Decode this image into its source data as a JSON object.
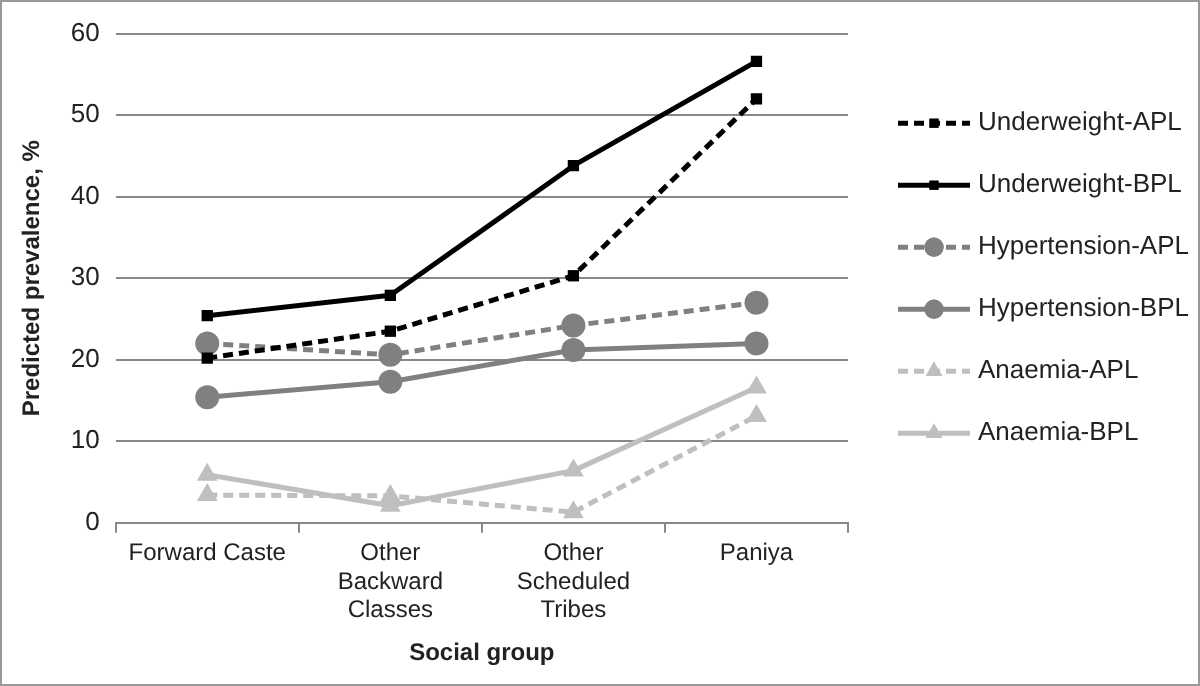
{
  "chart_data": {
    "type": "line",
    "xlabel": "Social group",
    "ylabel": "Predicted prevalence, %",
    "categories": [
      "Forward Caste",
      "Other Backward Classes",
      "Other Scheduled Tribes",
      "Paniya"
    ],
    "ylim": [
      0,
      60
    ],
    "yticks": [
      0,
      10,
      20,
      30,
      40,
      50,
      60
    ],
    "grid": "y",
    "legend": "right",
    "series": [
      {
        "name": "Underweight-APL",
        "color": "#000000",
        "marker": "square",
        "line_style": "dashed",
        "values": [
          20.2,
          23.5,
          30.3,
          52
        ]
      },
      {
        "name": "Underweight-BPL",
        "color": "#000000",
        "marker": "square",
        "line_style": "solid",
        "values": [
          25.4,
          27.9,
          43.8,
          56.6
        ]
      },
      {
        "name": "Hypertension-APL",
        "color": "#808080",
        "marker": "circle",
        "line_style": "dashed",
        "values": [
          22,
          20.6,
          24.2,
          27
        ]
      },
      {
        "name": "Hypertension-BPL",
        "color": "#808080",
        "marker": "circle",
        "line_style": "solid",
        "values": [
          15.4,
          17.3,
          21.2,
          22
        ]
      },
      {
        "name": "Anaemia-APL",
        "color": "#bfbfbf",
        "marker": "triangle",
        "line_style": "dashed",
        "values": [
          3.4,
          3.3,
          1.3,
          13.1
        ]
      },
      {
        "name": "Anaemia-BPL",
        "color": "#bfbfbf",
        "marker": "triangle",
        "line_style": "solid",
        "values": [
          5.9,
          2.1,
          6.4,
          16.6
        ]
      }
    ]
  }
}
